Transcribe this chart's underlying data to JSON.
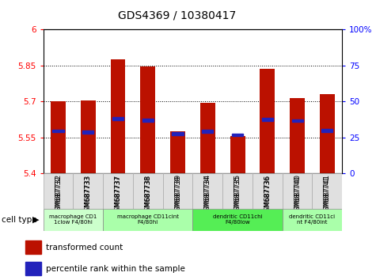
{
  "title": "GDS4369 / 10380417",
  "samples": [
    "GSM687732",
    "GSM687733",
    "GSM687737",
    "GSM687738",
    "GSM687739",
    "GSM687734",
    "GSM687735",
    "GSM687736",
    "GSM687740",
    "GSM687741"
  ],
  "bar_values": [
    5.7,
    5.705,
    5.875,
    5.845,
    5.575,
    5.695,
    5.555,
    5.835,
    5.715,
    5.73
  ],
  "percentile_values": [
    5.578,
    5.572,
    5.628,
    5.622,
    5.566,
    5.576,
    5.561,
    5.626,
    5.62,
    5.58
  ],
  "ymin": 5.4,
  "ymax": 6.0,
  "yticks": [
    5.4,
    5.55,
    5.7,
    5.85,
    6.0
  ],
  "ytick_labels": [
    "5.4",
    "5.55",
    "5.7",
    "5.85",
    "6"
  ],
  "y2ticks": [
    0,
    25,
    50,
    75,
    100
  ],
  "bar_color": "#BB1100",
  "blue_color": "#2222BB",
  "cell_types": [
    {
      "label": "macrophage CD1\n1clow F4/80hi",
      "start": 0,
      "end": 2,
      "color": "#CCFFCC"
    },
    {
      "label": "macrophage CD11cint\nF4/80hi",
      "start": 2,
      "end": 5,
      "color": "#AAFFAA"
    },
    {
      "label": "dendritic CD11chi\nF4/80low",
      "start": 5,
      "end": 8,
      "color": "#55EE55"
    },
    {
      "label": "dendritic CD11ci\nnt F4/80int",
      "start": 8,
      "end": 10,
      "color": "#AAFFAA"
    }
  ],
  "legend_red": "transformed count",
  "legend_blue": "percentile rank within the sample",
  "bar_width": 0.5,
  "grid_yticks": [
    5.55,
    5.7,
    5.85
  ]
}
